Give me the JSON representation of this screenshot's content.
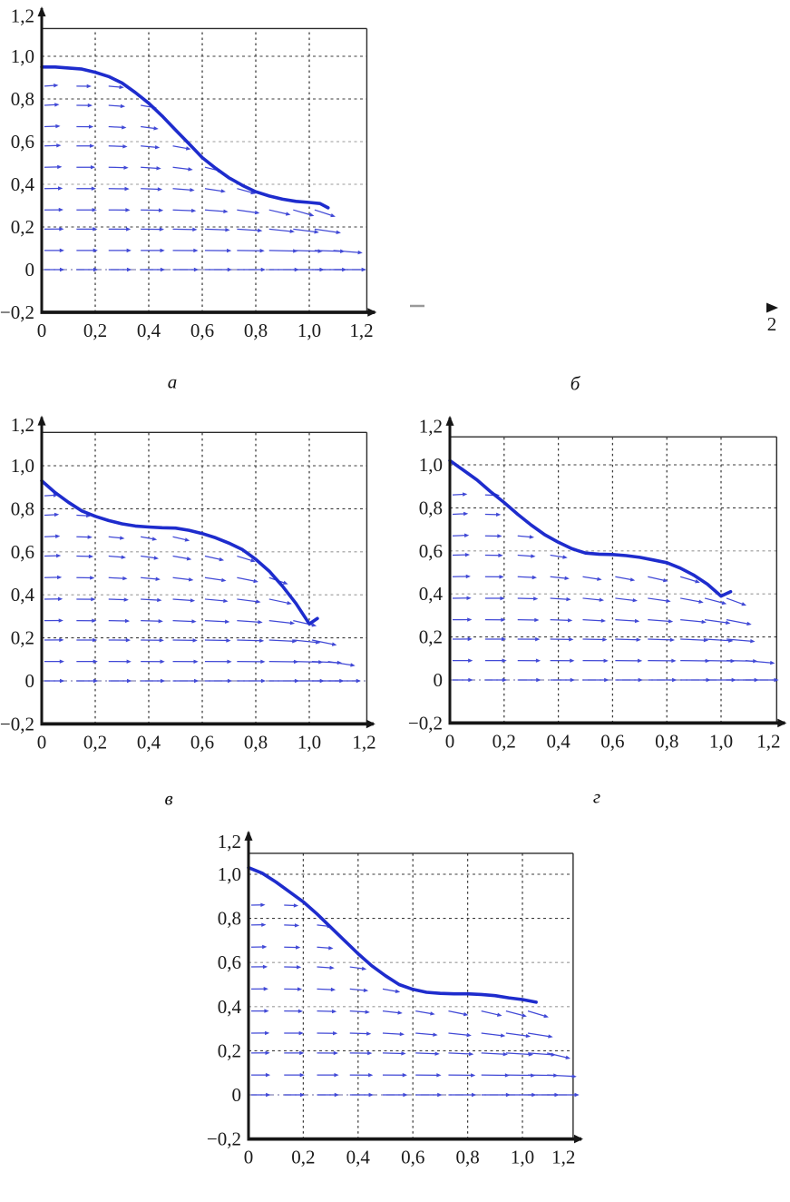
{
  "figure": {
    "description": "Four quiver plots of a velocity vector field beneath a descending free-surface curve; top-right plot is cropped leaving only an axis arrowhead with tick label 2, a small dash, and panel label",
    "background": "#ffffff"
  },
  "colors": {
    "curve_blue": "#1e2ccd",
    "arrow_blue": "#4149d6",
    "axis_black": "#161616",
    "grid_dark": "#3c3c3c",
    "grid_light": "#9b9b9b",
    "zero_line": "#8585b5",
    "text": "#1a1a1a",
    "fragment_gray": "#999999"
  },
  "axis_ticks": {
    "x": {
      "values": [
        0,
        0.2,
        0.4,
        0.6,
        0.8,
        1.0,
        1.2
      ],
      "labels": [
        "0",
        "0,2",
        "0,4",
        "0,6",
        "0,8",
        "1,0",
        "1,2"
      ]
    },
    "y": {
      "values": [
        -0.2,
        0,
        0.2,
        0.4,
        0.6,
        0.8,
        1.0,
        1.2
      ],
      "labels": [
        "−0,2",
        "0",
        "0,2",
        "0,4",
        "0,6",
        "0,8",
        "1,0",
        "1,2"
      ]
    }
  },
  "chart_data": [
    {
      "id": "a",
      "panel_label": "а",
      "type": "quiver-line",
      "x_range": [
        -0.2,
        1.2
      ],
      "y_range": [
        -0.2,
        1.2
      ],
      "grid": "dashed 0.2 spacing",
      "curve": {
        "x": [
          0,
          0.05,
          0.1,
          0.15,
          0.2,
          0.25,
          0.3,
          0.35,
          0.4,
          0.45,
          0.5,
          0.55,
          0.6,
          0.65,
          0.7,
          0.75,
          0.8,
          0.85,
          0.9,
          0.95,
          1.0,
          1.04,
          1.07
        ],
        "y": [
          0.95,
          0.95,
          0.945,
          0.94,
          0.925,
          0.905,
          0.875,
          0.83,
          0.78,
          0.72,
          0.655,
          0.59,
          0.525,
          0.475,
          0.43,
          0.395,
          0.365,
          0.345,
          0.33,
          0.32,
          0.315,
          0.31,
          0.29
        ]
      },
      "front_tip_x": 1.135,
      "quiver": {
        "cols": [
          0.01,
          0.13,
          0.25,
          0.37,
          0.49,
          0.61,
          0.73,
          0.85,
          0.94,
          1.02,
          1.09
        ],
        "rows": [
          0,
          0.09,
          0.19,
          0.28,
          0.38,
          0.48,
          0.58,
          0.67,
          0.77,
          0.86
        ],
        "clearance": 0.02,
        "up_tilt_deg": 14,
        "down_tilt_deg": 30,
        "len_base": 0.075,
        "len_gain": 0.05,
        "len_damp": 0.35
      }
    },
    {
      "id": "b",
      "panel_label": "б",
      "type": "fragment",
      "fragment": {
        "axis_arrow": "right",
        "tick_label": "2",
        "dash": "–"
      }
    },
    {
      "id": "v",
      "panel_label": "в",
      "type": "quiver-line",
      "x_range": [
        -0.2,
        1.2
      ],
      "y_range": [
        -0.2,
        1.2
      ],
      "grid": "dashed 0.2 spacing",
      "curve": {
        "x": [
          0,
          0.05,
          0.1,
          0.15,
          0.2,
          0.25,
          0.3,
          0.35,
          0.4,
          0.45,
          0.5,
          0.55,
          0.6,
          0.65,
          0.7,
          0.75,
          0.8,
          0.85,
          0.9,
          0.95,
          1.0,
          1.03
        ],
        "y": [
          0.93,
          0.875,
          0.83,
          0.79,
          0.765,
          0.745,
          0.73,
          0.72,
          0.715,
          0.712,
          0.71,
          0.7,
          0.685,
          0.665,
          0.64,
          0.61,
          0.565,
          0.51,
          0.44,
          0.36,
          0.265,
          0.29
        ]
      },
      "front_tip_x": 1.115,
      "quiver": {
        "cols": [
          0.01,
          0.13,
          0.25,
          0.37,
          0.49,
          0.61,
          0.73,
          0.85,
          0.94,
          1.01,
          1.07
        ],
        "rows": [
          0,
          0.09,
          0.19,
          0.28,
          0.38,
          0.48,
          0.58,
          0.67,
          0.77,
          0.86
        ],
        "clearance": 0.02,
        "up_tilt_deg": 14,
        "down_tilt_deg": 32,
        "len_base": 0.075,
        "len_gain": 0.05,
        "len_damp": 0.35
      }
    },
    {
      "id": "g",
      "panel_label": "г",
      "type": "quiver-line",
      "x_range": [
        -0.2,
        1.2
      ],
      "y_range": [
        -0.2,
        1.2
      ],
      "grid": "dashed 0.2 spacing",
      "curve": {
        "x": [
          0,
          0.05,
          0.1,
          0.15,
          0.2,
          0.25,
          0.3,
          0.35,
          0.4,
          0.45,
          0.5,
          0.55,
          0.6,
          0.65,
          0.7,
          0.75,
          0.8,
          0.85,
          0.9,
          0.95,
          1.0,
          1.035
        ],
        "y": [
          1.02,
          0.975,
          0.93,
          0.875,
          0.825,
          0.77,
          0.72,
          0.675,
          0.64,
          0.61,
          0.59,
          0.585,
          0.583,
          0.578,
          0.57,
          0.558,
          0.545,
          0.52,
          0.487,
          0.445,
          0.39,
          0.41
        ]
      },
      "front_tip_x": 1.14,
      "quiver": {
        "cols": [
          0.01,
          0.13,
          0.25,
          0.37,
          0.49,
          0.61,
          0.73,
          0.85,
          0.94,
          1.02,
          1.09
        ],
        "rows": [
          0,
          0.09,
          0.19,
          0.28,
          0.38,
          0.48,
          0.58,
          0.67,
          0.77,
          0.86
        ],
        "clearance": 0.02,
        "up_tilt_deg": 14,
        "down_tilt_deg": 30,
        "len_base": 0.075,
        "len_gain": 0.05,
        "len_damp": 0.35
      }
    },
    {
      "id": "e",
      "panel_label": "",
      "type": "quiver-line",
      "x_range": [
        -0.2,
        1.2
      ],
      "y_range": [
        -0.2,
        1.2
      ],
      "grid": "dashed 0.2 spacing",
      "curve": {
        "x": [
          0,
          0.05,
          0.1,
          0.15,
          0.2,
          0.25,
          0.3,
          0.35,
          0.4,
          0.45,
          0.5,
          0.55,
          0.6,
          0.65,
          0.7,
          0.75,
          0.8,
          0.85,
          0.9,
          0.95,
          1.0,
          1.05
        ],
        "y": [
          1.03,
          1.005,
          0.965,
          0.92,
          0.875,
          0.82,
          0.76,
          0.7,
          0.64,
          0.585,
          0.54,
          0.5,
          0.478,
          0.465,
          0.46,
          0.458,
          0.458,
          0.455,
          0.45,
          0.44,
          0.432,
          0.42
        ]
      },
      "front_tip_x": 1.145,
      "quiver": {
        "cols": [
          0.01,
          0.13,
          0.25,
          0.37,
          0.49,
          0.61,
          0.73,
          0.85,
          0.94,
          1.02,
          1.09
        ],
        "rows": [
          0,
          0.09,
          0.19,
          0.28,
          0.38,
          0.48,
          0.58,
          0.67,
          0.77,
          0.86
        ],
        "clearance": 0.02,
        "up_tilt_deg": 10,
        "down_tilt_deg": 28,
        "len_base": 0.07,
        "len_gain": 0.05,
        "len_damp": 0.35
      }
    }
  ]
}
